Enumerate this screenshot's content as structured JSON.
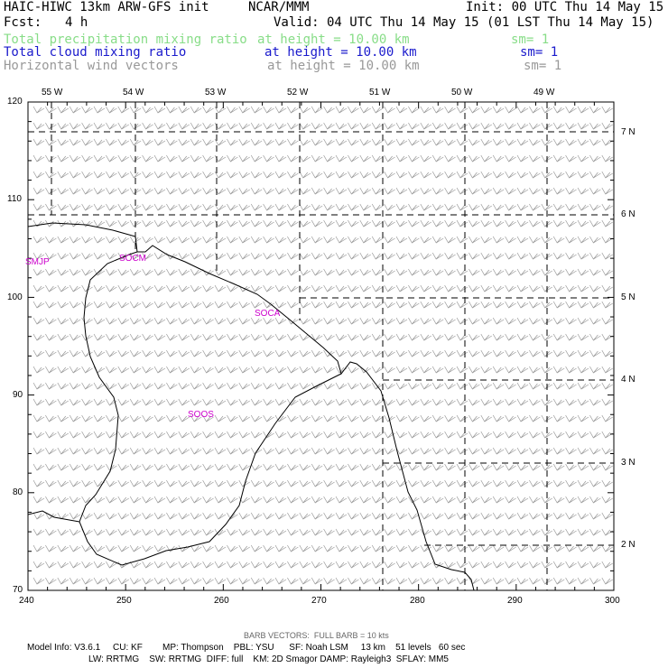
{
  "header": {
    "model_title": "HAIC-HIWC 13km ARW-GFS init",
    "org": "NCAR/MMM",
    "init": "Init: 00 UTC Thu 14 May 15",
    "fcst_label": "Fcst:",
    "fcst_value": "4 h",
    "valid": "Valid: 04 UTC Thu 14 May 15 (01 LST Thu 14 May 15)"
  },
  "fields": [
    {
      "name": "Total precipitation mixing ratio",
      "height": "at height = 10.00 km",
      "sm": "sm= 1",
      "color": "#88dd88"
    },
    {
      "name": "Total cloud mixing ratio",
      "height": "at height = 10.00 km",
      "sm": "sm= 1",
      "color": "#1a1acc"
    },
    {
      "name": "Horizontal wind vectors",
      "height": "at height = 10.00 km",
      "sm": "sm= 1",
      "color": "#999999"
    }
  ],
  "map": {
    "lon_labels": [
      "55 W",
      "54 W",
      "53 W",
      "52 W",
      "51 W",
      "50 W",
      "49 W"
    ],
    "lat_labels": [
      "7 N",
      "6 N",
      "5 N",
      "4 N",
      "3 N",
      "2 N"
    ],
    "x_ticks": [
      "240",
      "250",
      "260",
      "270",
      "280",
      "290",
      "300"
    ],
    "y_ticks": [
      "70",
      "80",
      "90",
      "100",
      "110",
      "120"
    ],
    "x_range": [
      240,
      300
    ],
    "y_range": [
      70,
      120
    ],
    "stations": [
      "SMJP",
      "SOCA",
      "SOOS",
      "SOCM"
    ],
    "station_color": "#cc00cc",
    "barb_color": "#999999",
    "coast_color": "#000000"
  },
  "footer": {
    "barb_note": "BARB VECTORS:  FULL BARB = 10 kts",
    "line1": "Model Info: V3.6.1     CU: KF        MP: Thompson    PBL: YSU      SF: Noah LSM     13 km    51 levels   60 sec",
    "line2": "LW: RRTMG    SW: RRTMG  DIFF: full    KM: 2D Smagor DAMP: Rayleigh3  SFLAY: MM5"
  }
}
